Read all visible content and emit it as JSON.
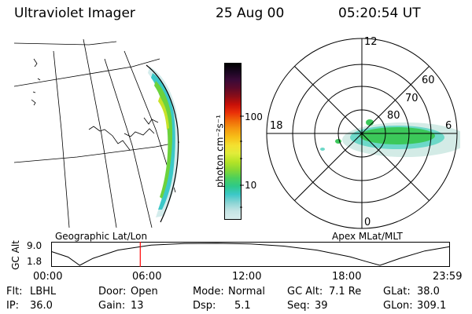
{
  "header": {
    "instrument": "Ultraviolet Imager",
    "date": "25 Aug 00",
    "time": "05:20:54 UT"
  },
  "map_panel": {
    "label": "Geographic Lat/Lon"
  },
  "colorbar": {
    "unit_label": "photon cm⁻²s⁻¹",
    "ticks": [
      "100",
      "10"
    ],
    "colors": [
      "#d8ecec",
      "#c4e4e4",
      "#8ad4d4",
      "#3cc8c8",
      "#2ec98a",
      "#4cd05c",
      "#86d834",
      "#b6e426",
      "#e0ec3a",
      "#f4e030",
      "#f7c018",
      "#f59a10",
      "#f06a08",
      "#ea3008",
      "#c81008",
      "#8a0d18",
      "#5c0a2a",
      "#3a0a38",
      "#1a0620",
      "#000000"
    ]
  },
  "polar_panel": {
    "label": "Apex MLat/MLT",
    "mlt_labels": [
      "12",
      "18",
      "6",
      "0"
    ],
    "mlat_labels": [
      "60",
      "70",
      "80"
    ],
    "colors": {
      "green": "#3cc85a",
      "cyan": "#6cd8c8",
      "pale": "#c8e6e0"
    }
  },
  "orbit_plot": {
    "ylabel": "GC Alt",
    "yticks": [
      "9.0",
      "1.8"
    ],
    "xticks": [
      "00:00",
      "06:00",
      "12:00",
      "18:00",
      "23:59"
    ],
    "marker_color": "#ff0000"
  },
  "chart_data": {
    "type": "line",
    "title": "",
    "xlabel": "",
    "ylabel": "GC Alt",
    "ylim": [
      1.8,
      9.0
    ],
    "xticks": [
      "00:00",
      "06:00",
      "12:00",
      "18:00",
      "23:59"
    ],
    "x": [
      0,
      1,
      1.7,
      2.5,
      4,
      6,
      8,
      10,
      12,
      14,
      16,
      18,
      19,
      19.8,
      21,
      22.5,
      24
    ],
    "y": [
      6.3,
      4.5,
      1.8,
      4.1,
      6.8,
      8.4,
      8.95,
      9.0,
      8.8,
      8.1,
      6.8,
      4.6,
      3.0,
      1.8,
      4.1,
      6.5,
      7.9
    ],
    "marker_x": 5.35
  },
  "status": {
    "flt_label": "Flt:",
    "flt_value": "LBHL",
    "ip_label": "IP:",
    "ip_value": "36.0",
    "door_label": "Door:",
    "door_value": "Open",
    "gain_label": "Gain:",
    "gain_value": "13",
    "mode_label": "Mode:",
    "mode_value": "Normal",
    "dsp_label": "Dsp:",
    "dsp_value": "5.1",
    "gcalt_label": "GC Alt:",
    "gcalt_value": "7.1 Re",
    "seq_label": "Seq:",
    "seq_value": "39",
    "glat_label": "GLat:",
    "glat_value": "38.0",
    "glon_label": "GLon:",
    "glon_value": "309.1"
  }
}
